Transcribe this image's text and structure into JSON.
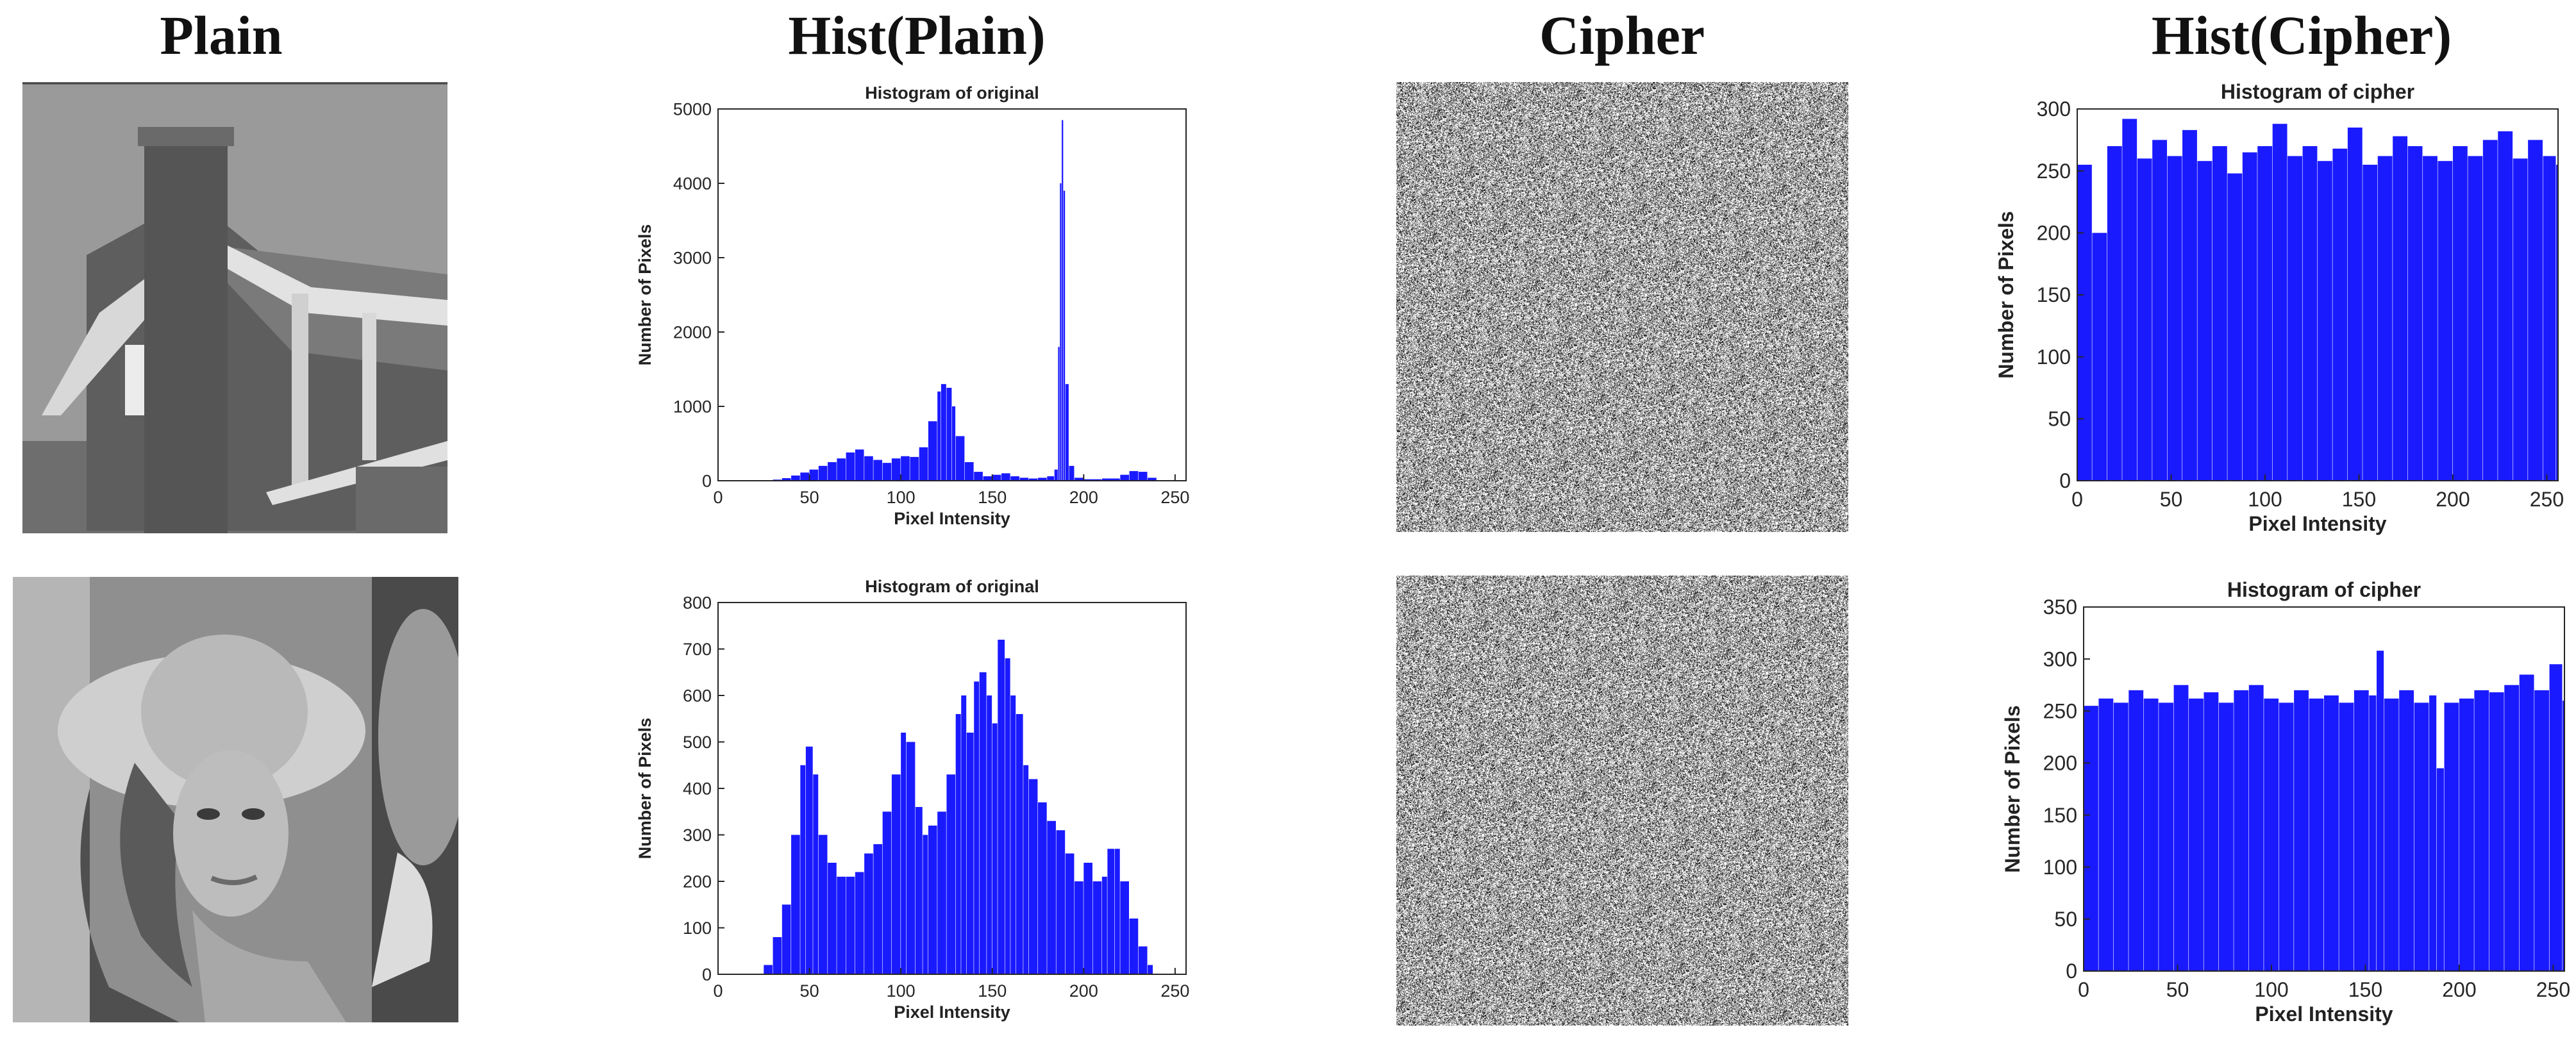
{
  "headers": [
    "Plain",
    "Hist(Plain)",
    "Cipher",
    "Hist(Cipher)"
  ],
  "colors": {
    "bar": "#1a1aff",
    "axis": "#262626"
  },
  "chart_data": [
    {
      "id": "hist-plain-house",
      "type": "bar",
      "title": "Histogram of original",
      "xlabel": "Pixel Intensity",
      "ylabel": "Number of Pixels",
      "xlim": [
        0,
        256
      ],
      "ylim": [
        0,
        5000
      ],
      "xticks": [
        0,
        50,
        100,
        150,
        200,
        250
      ],
      "yticks": [
        0,
        1000,
        2000,
        3000,
        4000,
        5000
      ],
      "grid": false,
      "x": [
        20,
        25,
        30,
        35,
        40,
        45,
        50,
        55,
        60,
        65,
        70,
        75,
        80,
        85,
        90,
        95,
        100,
        105,
        110,
        115,
        120,
        122,
        125,
        128,
        130,
        135,
        140,
        145,
        150,
        155,
        160,
        165,
        170,
        175,
        180,
        184,
        186,
        187,
        188,
        189,
        190,
        192,
        195,
        200,
        210,
        220,
        225,
        230,
        235,
        240
      ],
      "values": [
        0,
        5,
        15,
        35,
        70,
        110,
        150,
        200,
        250,
        300,
        380,
        420,
        330,
        280,
        240,
        300,
        330,
        320,
        450,
        800,
        1200,
        1300,
        1250,
        1000,
        600,
        250,
        120,
        60,
        80,
        100,
        60,
        40,
        30,
        40,
        60,
        150,
        1800,
        4000,
        4850,
        3900,
        1300,
        200,
        40,
        20,
        30,
        80,
        130,
        120,
        40,
        0
      ]
    },
    {
      "id": "hist-plain-lena",
      "type": "bar",
      "title": "Histogram of original",
      "xlabel": "Pixel Intensity",
      "ylabel": "Number of Pixels",
      "xlim": [
        0,
        256
      ],
      "ylim": [
        0,
        800
      ],
      "xticks": [
        0,
        50,
        100,
        150,
        200,
        250
      ],
      "yticks": [
        0,
        100,
        200,
        300,
        400,
        500,
        600,
        700,
        800
      ],
      "grid": false,
      "x": [
        22,
        25,
        30,
        35,
        40,
        45,
        48,
        52,
        55,
        60,
        65,
        70,
        75,
        80,
        85,
        90,
        95,
        100,
        103,
        108,
        112,
        115,
        120,
        125,
        130,
        133,
        136,
        140,
        143,
        147,
        150,
        153,
        157,
        160,
        163,
        167,
        170,
        175,
        180,
        185,
        190,
        195,
        200,
        205,
        210,
        213,
        217,
        220,
        225,
        230,
        235,
        238
      ],
      "values": [
        0,
        20,
        80,
        150,
        300,
        450,
        490,
        430,
        300,
        240,
        210,
        210,
        220,
        260,
        280,
        350,
        430,
        520,
        500,
        360,
        300,
        320,
        350,
        430,
        560,
        600,
        520,
        630,
        650,
        600,
        540,
        720,
        680,
        600,
        560,
        450,
        420,
        370,
        330,
        310,
        260,
        200,
        240,
        200,
        210,
        270,
        270,
        200,
        120,
        60,
        20,
        0
      ]
    },
    {
      "id": "hist-cipher-house",
      "type": "bar",
      "title": "Histogram of cipher",
      "xlabel": "Pixel Intensity",
      "ylabel": "Number of Pixels",
      "xlim": [
        0,
        256
      ],
      "ylim": [
        0,
        300
      ],
      "xticks": [
        0,
        50,
        100,
        150,
        200,
        250
      ],
      "yticks": [
        0,
        50,
        100,
        150,
        200,
        250,
        300
      ],
      "grid": false,
      "x": [
        0,
        8,
        16,
        24,
        32,
        40,
        48,
        56,
        64,
        72,
        80,
        88,
        96,
        104,
        112,
        120,
        128,
        136,
        144,
        152,
        160,
        168,
        176,
        184,
        192,
        200,
        208,
        216,
        224,
        232,
        240,
        248,
        255
      ],
      "values": [
        255,
        200,
        270,
        292,
        260,
        275,
        262,
        283,
        258,
        270,
        248,
        265,
        270,
        288,
        262,
        270,
        258,
        268,
        285,
        255,
        262,
        278,
        270,
        262,
        258,
        270,
        262,
        275,
        282,
        260,
        275,
        262,
        255
      ]
    },
    {
      "id": "hist-cipher-lena",
      "type": "bar",
      "title": "Histogram of cipher",
      "xlabel": "Pixel Intensity",
      "ylabel": "Number of Pixels",
      "xlim": [
        0,
        256
      ],
      "ylim": [
        0,
        350
      ],
      "xticks": [
        0,
        50,
        100,
        150,
        200,
        250
      ],
      "yticks": [
        0,
        50,
        100,
        150,
        200,
        250,
        300,
        350
      ],
      "grid": false,
      "x": [
        0,
        8,
        16,
        24,
        32,
        40,
        48,
        56,
        64,
        72,
        80,
        88,
        96,
        104,
        112,
        120,
        128,
        136,
        144,
        152,
        156,
        160,
        168,
        176,
        184,
        188,
        192,
        200,
        208,
        216,
        224,
        232,
        240,
        248,
        255
      ],
      "values": [
        255,
        262,
        258,
        270,
        262,
        258,
        275,
        262,
        268,
        258,
        270,
        275,
        262,
        258,
        270,
        262,
        265,
        258,
        270,
        265,
        308,
        262,
        270,
        258,
        265,
        195,
        258,
        262,
        270,
        268,
        275,
        285,
        270,
        295,
        260
      ]
    }
  ]
}
